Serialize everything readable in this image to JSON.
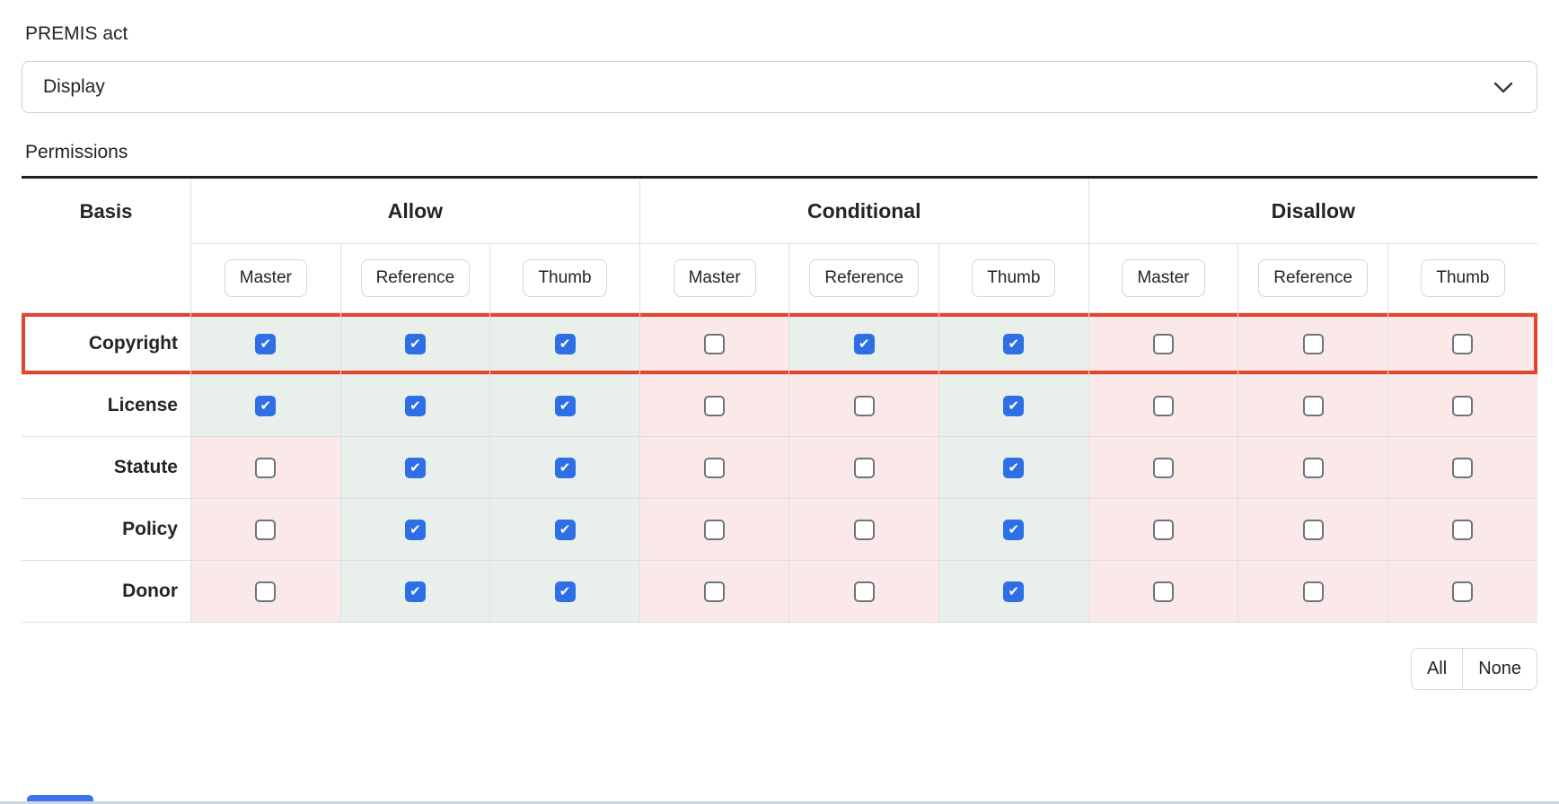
{
  "premis": {
    "label": "PREMIS act",
    "selected": "Display"
  },
  "permissions": {
    "label": "Permissions",
    "table": {
      "basis_header": "Basis",
      "groups": [
        {
          "label": "Allow"
        },
        {
          "label": "Conditional"
        },
        {
          "label": "Disallow"
        }
      ],
      "subcolumns": [
        "Master",
        "Reference",
        "Thumb"
      ],
      "rows": [
        {
          "basis": "Copyright",
          "highlighted": true,
          "checks": [
            true,
            true,
            true,
            false,
            true,
            true,
            false,
            false,
            false
          ]
        },
        {
          "basis": "License",
          "highlighted": false,
          "checks": [
            true,
            true,
            true,
            false,
            false,
            true,
            false,
            false,
            false
          ]
        },
        {
          "basis": "Statute",
          "highlighted": false,
          "checks": [
            false,
            true,
            true,
            false,
            false,
            true,
            false,
            false,
            false
          ]
        },
        {
          "basis": "Policy",
          "highlighted": false,
          "checks": [
            false,
            true,
            true,
            false,
            false,
            true,
            false,
            false,
            false
          ]
        },
        {
          "basis": "Donor",
          "highlighted": false,
          "checks": [
            false,
            true,
            true,
            false,
            false,
            true,
            false,
            false,
            false
          ]
        }
      ]
    },
    "bulk_actions": [
      {
        "label": "All"
      },
      {
        "label": "None"
      }
    ]
  },
  "icons": {
    "select_chevron": "chevron-down"
  },
  "colors": {
    "checkbox_blue": "#2f6fe5",
    "checked_cell_bg": "#e9f0eb",
    "unchecked_cell_bg": "#fbe9e9",
    "highlight_border": "#e5452f",
    "partial_button_blue": "#3b73f0"
  }
}
